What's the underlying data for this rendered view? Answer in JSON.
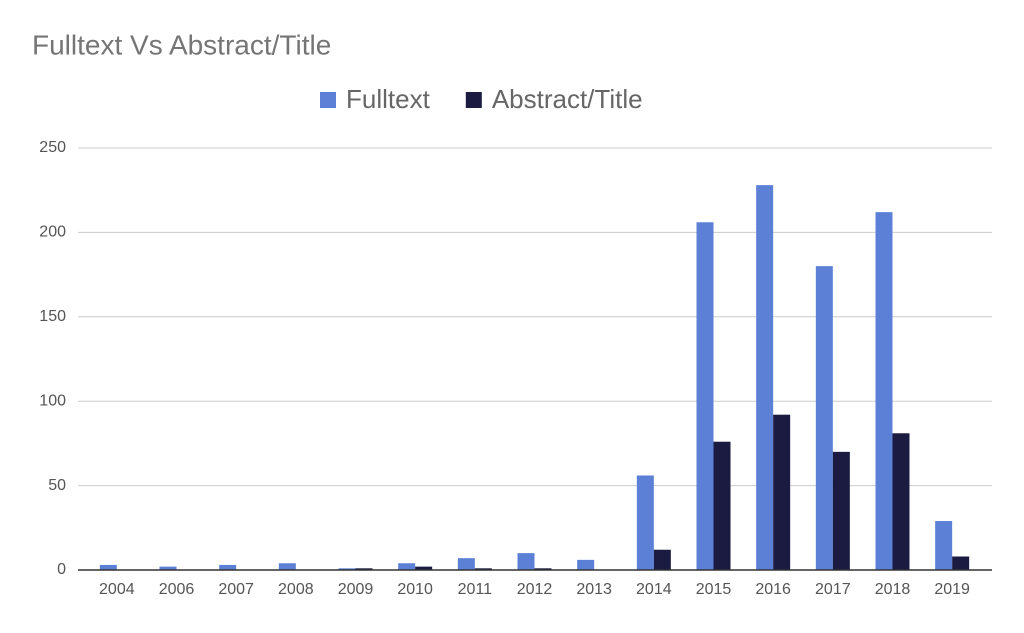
{
  "chart_data": {
    "type": "bar",
    "title": "Fulltext Vs Abstract/Title",
    "categories": [
      "2004",
      "2006",
      "2007",
      "2008",
      "2009",
      "2010",
      "2011",
      "2012",
      "2013",
      "2014",
      "2015",
      "2016",
      "2017",
      "2018",
      "2019"
    ],
    "series": [
      {
        "name": "Fulltext",
        "color": "#5b80d6",
        "values": [
          3,
          2,
          3,
          4,
          1,
          4,
          7,
          10,
          6,
          56,
          206,
          228,
          180,
          212,
          29
        ]
      },
      {
        "name": "Abstract/Title",
        "color": "#1b1b42",
        "values": [
          0,
          0,
          0,
          0,
          1,
          2,
          1,
          1,
          0,
          12,
          76,
          92,
          70,
          81,
          8
        ]
      }
    ],
    "ylim": [
      0,
      250
    ],
    "yticks": [
      0,
      50,
      100,
      150,
      200,
      250
    ],
    "grid": true,
    "legend": "top"
  }
}
